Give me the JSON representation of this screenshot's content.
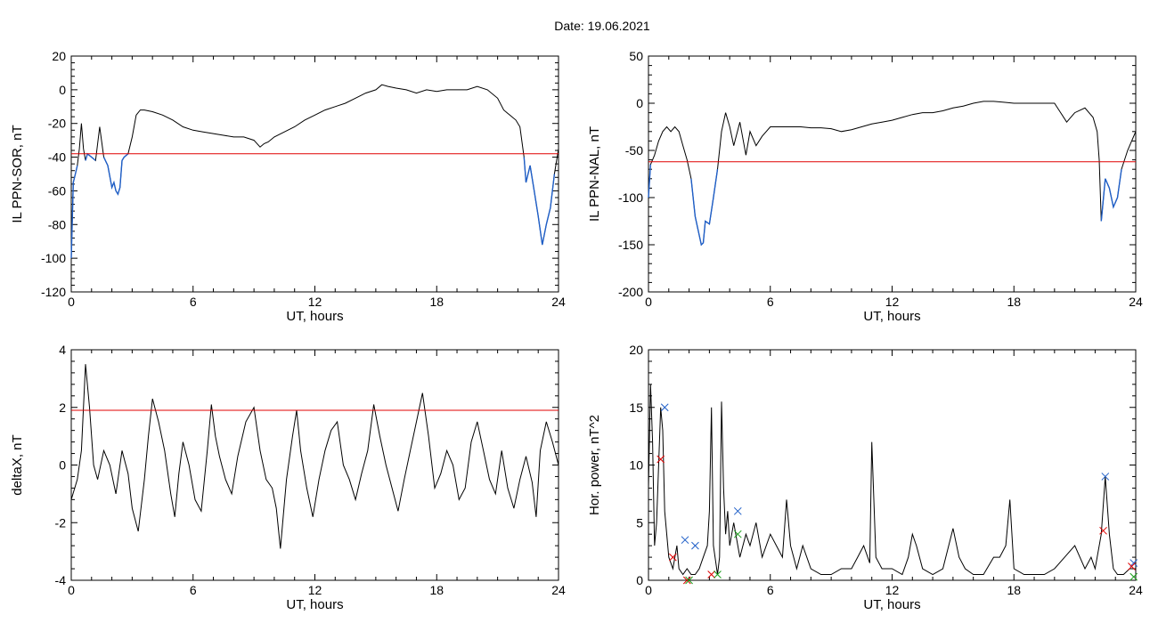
{
  "date_label": "Date:  19.06.2021",
  "chart_data": [
    {
      "type": "line",
      "ylabel": "IL PPN-SOR, nT",
      "xlabel": "UT, hours",
      "xlim": [
        0,
        24
      ],
      "ylim": [
        -120,
        20
      ],
      "xticks": [
        0,
        6,
        12,
        18,
        24
      ],
      "yticks": [
        -120,
        -100,
        -80,
        -60,
        -40,
        -20,
        0,
        20
      ],
      "threshold": -38,
      "colors": {
        "line": "#000000",
        "below": "#1f5fc8",
        "threshold": "#e00000"
      },
      "series": [
        {
          "x": [
            0,
            0.1,
            0.2,
            0.3,
            0.4,
            0.5,
            0.6,
            0.7,
            0.8,
            1.0,
            1.2,
            1.4,
            1.6,
            1.8,
            2.0,
            2.1,
            2.2,
            2.3,
            2.4,
            2.5,
            2.6,
            2.8,
            3.0,
            3.2,
            3.4,
            3.6,
            4.0,
            4.5,
            5.0,
            5.5,
            6.0,
            6.5,
            7.0,
            7.5,
            8.0,
            8.5,
            9.0,
            9.3,
            9.5,
            9.7,
            10.0,
            10.5,
            11.0,
            11.5,
            12.0,
            12.5,
            13.0,
            13.5,
            14.0,
            14.5,
            15.0,
            15.3,
            15.6,
            16.0,
            16.5,
            17.0,
            17.5,
            18.0,
            18.5,
            19.0,
            19.5,
            20.0,
            20.5,
            21.0,
            21.3,
            21.6,
            21.9,
            22.1,
            22.3,
            22.4,
            22.6,
            22.8,
            23.0,
            23.2,
            23.4,
            23.6,
            23.8,
            24.0
          ],
          "y": [
            -100,
            -55,
            -50,
            -45,
            -35,
            -20,
            -35,
            -42,
            -38,
            -40,
            -42,
            -22,
            -40,
            -45,
            -58,
            -55,
            -60,
            -62,
            -58,
            -42,
            -40,
            -38,
            -28,
            -15,
            -12,
            -12,
            -13,
            -15,
            -18,
            -22,
            -24,
            -25,
            -26,
            -27,
            -28,
            -28,
            -30,
            -34,
            -32,
            -31,
            -28,
            -25,
            -22,
            -18,
            -15,
            -12,
            -10,
            -8,
            -5,
            -2,
            0,
            3,
            2,
            1,
            0,
            -2,
            0,
            -1,
            0,
            0,
            0,
            2,
            0,
            -5,
            -12,
            -15,
            -18,
            -22,
            -40,
            -55,
            -45,
            -60,
            -75,
            -92,
            -80,
            -70,
            -50,
            -35
          ]
        }
      ]
    },
    {
      "type": "line",
      "ylabel": "IL PPN-NAL, nT",
      "xlabel": "UT, hours",
      "xlim": [
        0,
        24
      ],
      "ylim": [
        -200,
        50
      ],
      "xticks": [
        0,
        6,
        12,
        18,
        24
      ],
      "yticks": [
        -200,
        -150,
        -100,
        -50,
        0,
        50
      ],
      "threshold": -62,
      "colors": {
        "line": "#000000",
        "below": "#1f5fc8",
        "threshold": "#e00000"
      },
      "series": [
        {
          "x": [
            0,
            0.1,
            0.2,
            0.3,
            0.5,
            0.7,
            0.9,
            1.1,
            1.3,
            1.5,
            1.7,
            1.9,
            2.1,
            2.3,
            2.5,
            2.6,
            2.7,
            2.8,
            3.0,
            3.2,
            3.4,
            3.6,
            3.8,
            4.0,
            4.2,
            4.5,
            4.8,
            5.0,
            5.3,
            5.6,
            6.0,
            6.5,
            7.0,
            7.5,
            8.0,
            8.5,
            9.0,
            9.5,
            10.0,
            10.5,
            11.0,
            11.5,
            12.0,
            12.5,
            13.0,
            13.5,
            14.0,
            14.5,
            15.0,
            15.5,
            16.0,
            16.5,
            17.0,
            17.5,
            18.0,
            18.5,
            19.0,
            19.5,
            20.0,
            20.3,
            20.6,
            21.0,
            21.5,
            21.9,
            22.1,
            22.2,
            22.3,
            22.5,
            22.7,
            22.9,
            23.1,
            23.3,
            23.6,
            24.0
          ],
          "y": [
            -100,
            -65,
            -60,
            -55,
            -40,
            -30,
            -25,
            -30,
            -25,
            -30,
            -45,
            -60,
            -80,
            -120,
            -140,
            -150,
            -148,
            -125,
            -128,
            -100,
            -70,
            -30,
            -10,
            -25,
            -45,
            -20,
            -55,
            -30,
            -45,
            -35,
            -25,
            -25,
            -25,
            -25,
            -26,
            -26,
            -27,
            -30,
            -28,
            -25,
            -22,
            -20,
            -18,
            -15,
            -12,
            -10,
            -10,
            -8,
            -5,
            -3,
            0,
            2,
            2,
            1,
            0,
            0,
            0,
            0,
            0,
            -10,
            -20,
            -10,
            -5,
            -15,
            -30,
            -60,
            -125,
            -80,
            -90,
            -110,
            -100,
            -70,
            -50,
            -30
          ]
        }
      ]
    },
    {
      "type": "line",
      "ylabel": "deltaX, nT",
      "xlabel": "UT, hours",
      "xlim": [
        0,
        24
      ],
      "ylim": [
        -4,
        4
      ],
      "xticks": [
        0,
        6,
        12,
        18,
        24
      ],
      "yticks": [
        -4,
        -2,
        0,
        2,
        4
      ],
      "threshold": 1.9,
      "colors": {
        "line": "#000000",
        "threshold": "#e00000"
      },
      "series": [
        {
          "x": [
            0,
            0.3,
            0.5,
            0.6,
            0.7,
            0.9,
            1.1,
            1.3,
            1.6,
            1.9,
            2.2,
            2.5,
            2.8,
            3.0,
            3.3,
            3.6,
            3.8,
            4.0,
            4.3,
            4.6,
            4.9,
            5.1,
            5.3,
            5.5,
            5.8,
            6.1,
            6.4,
            6.7,
            6.9,
            7.1,
            7.3,
            7.6,
            7.9,
            8.2,
            8.6,
            9.0,
            9.3,
            9.6,
            9.9,
            10.1,
            10.3,
            10.6,
            10.9,
            11.1,
            11.3,
            11.6,
            11.9,
            12.2,
            12.5,
            12.8,
            13.1,
            13.4,
            13.7,
            14.0,
            14.3,
            14.6,
            14.9,
            15.2,
            15.5,
            15.8,
            16.1,
            16.4,
            16.7,
            17.0,
            17.3,
            17.6,
            17.9,
            18.2,
            18.5,
            18.8,
            19.1,
            19.4,
            19.7,
            20.0,
            20.3,
            20.6,
            20.9,
            21.2,
            21.5,
            21.8,
            22.1,
            22.4,
            22.7,
            22.9,
            23.1,
            23.4,
            23.7,
            24.0
          ],
          "y": [
            -1.2,
            -0.5,
            0.5,
            2.0,
            3.5,
            2.0,
            0.0,
            -0.5,
            0.5,
            0.0,
            -1.0,
            0.5,
            -0.3,
            -1.5,
            -2.3,
            -0.5,
            1.0,
            2.3,
            1.5,
            0.5,
            -1.0,
            -1.8,
            -0.3,
            0.8,
            0.0,
            -1.2,
            -1.6,
            0.5,
            2.1,
            1.0,
            0.3,
            -0.5,
            -1.0,
            0.3,
            1.5,
            2.0,
            0.5,
            -0.5,
            -0.8,
            -1.5,
            -2.9,
            -0.5,
            1.0,
            1.9,
            0.5,
            -0.8,
            -1.8,
            -0.5,
            0.5,
            1.2,
            1.5,
            0.0,
            -0.5,
            -1.2,
            -0.3,
            0.5,
            2.1,
            1.0,
            0.0,
            -0.8,
            -1.6,
            -0.5,
            0.5,
            1.5,
            2.5,
            1.0,
            -0.8,
            -0.3,
            0.5,
            0.0,
            -1.2,
            -0.8,
            0.8,
            1.5,
            0.5,
            -0.5,
            -1.0,
            0.5,
            -0.8,
            -1.5,
            -0.5,
            0.3,
            -0.6,
            -1.8,
            0.5,
            1.5,
            0.8,
            0.0
          ]
        }
      ]
    },
    {
      "type": "line",
      "ylabel": "Hor. power, nT^2",
      "xlabel": "UT, hours",
      "xlim": [
        0,
        24
      ],
      "ylim": [
        0,
        20
      ],
      "xticks": [
        0,
        6,
        12,
        18,
        24
      ],
      "yticks": [
        0,
        5,
        10,
        15,
        20
      ],
      "colors": {
        "line": "#000000",
        "blue": "#1f5fc8",
        "red": "#e00000",
        "green": "#1aa01a"
      },
      "series": [
        {
          "x": [
            0,
            0.1,
            0.2,
            0.3,
            0.4,
            0.5,
            0.6,
            0.7,
            0.8,
            1.0,
            1.2,
            1.4,
            1.5,
            1.7,
            1.9,
            2.1,
            2.3,
            2.5,
            2.7,
            2.9,
            3.0,
            3.1,
            3.2,
            3.4,
            3.5,
            3.6,
            3.7,
            3.8,
            3.9,
            4.0,
            4.2,
            4.5,
            4.8,
            5.0,
            5.3,
            5.6,
            6.0,
            6.3,
            6.6,
            6.8,
            7.0,
            7.3,
            7.6,
            8.0,
            8.5,
            9.0,
            9.5,
            10.0,
            10.3,
            10.6,
            10.9,
            11.0,
            11.2,
            11.5,
            12.0,
            12.5,
            12.8,
            13.0,
            13.2,
            13.5,
            14.0,
            14.5,
            15.0,
            15.3,
            15.6,
            16.0,
            16.5,
            17.0,
            17.3,
            17.6,
            17.8,
            18.0,
            18.5,
            19.0,
            19.5,
            20.0,
            20.5,
            21.0,
            21.5,
            21.8,
            22.0,
            22.3,
            22.5,
            22.7,
            22.9,
            23.1,
            23.4,
            23.7,
            24.0
          ],
          "y": [
            8,
            17,
            12,
            3,
            5,
            10,
            15,
            13,
            6,
            2,
            1,
            3,
            1,
            0.5,
            1,
            0.5,
            0.5,
            1,
            2,
            3,
            6,
            15,
            3,
            0.5,
            2,
            15.5,
            8,
            4,
            6,
            3,
            5,
            2,
            4,
            3,
            5,
            2,
            4,
            3,
            2,
            7,
            3,
            1,
            3,
            1,
            0.5,
            0.5,
            1,
            1,
            2,
            3,
            1.5,
            12,
            2,
            1,
            1,
            0.5,
            2,
            4,
            3,
            1,
            0.5,
            1,
            4.5,
            2,
            1,
            0.5,
            0.5,
            2,
            2,
            3,
            7,
            1,
            0.5,
            0.5,
            0.5,
            1,
            2,
            3,
            1,
            2,
            1,
            4,
            9,
            4,
            1,
            0.5,
            0.5,
            1,
            1
          ]
        }
      ],
      "markers": {
        "blue": {
          "x": [
            0.8,
            1.8,
            2.3,
            4.4,
            22.5,
            23.9
          ],
          "y": [
            15,
            3.5,
            3,
            6,
            9,
            1.5
          ]
        },
        "red": {
          "x": [
            0.6,
            1.2,
            1.9,
            3.1,
            22.4,
            23.8
          ],
          "y": [
            10.5,
            2,
            0,
            0.5,
            4.3,
            1.2
          ]
        },
        "green": {
          "x": [
            2.0,
            3.4,
            4.4,
            23.9
          ],
          "y": [
            0,
            0.5,
            4,
            0.3
          ]
        }
      }
    }
  ]
}
